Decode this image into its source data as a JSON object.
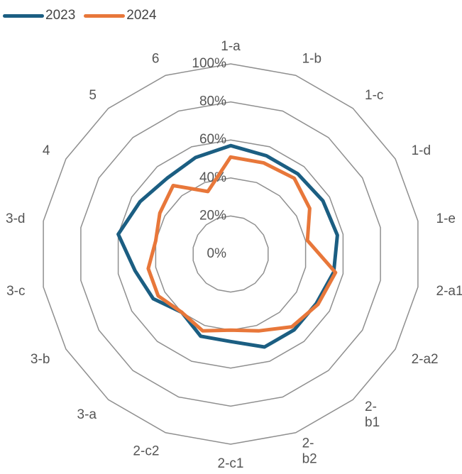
{
  "chart_data": {
    "type": "radar",
    "categories": [
      "1-a",
      "1-b",
      "1-c",
      "1-d",
      "1-e",
      "2-a1",
      "2-a2",
      "2-b1",
      "2-b2",
      "2-c1",
      "2-c2",
      "3-a",
      "3-b",
      "3-c",
      "3-d",
      "4",
      "5",
      "6"
    ],
    "category_display": [
      "1-a",
      "1-b",
      "1-c",
      "1-d",
      "1-e",
      "2-a1",
      "2-a2",
      [
        "2-",
        "b1"
      ],
      [
        "2-",
        "b2"
      ],
      "2-c1",
      "2-c2",
      "3-a",
      "3-b",
      "3-c",
      "3-d",
      "4",
      "5",
      "6"
    ],
    "rlim": [
      0,
      100
    ],
    "rticks": [
      0,
      20,
      40,
      60,
      80,
      100
    ],
    "rtick_labels": [
      "0%",
      "20%",
      "40%",
      "60%",
      "80%",
      "100%"
    ],
    "grid": true,
    "legend_position": "top-left",
    "series": [
      {
        "name": "2023",
        "color": "#1b5e82",
        "values": [
          57,
          55,
          55,
          56,
          57,
          55,
          52,
          52,
          52,
          46,
          46,
          40,
          47,
          51,
          60,
          55,
          52,
          54
        ]
      },
      {
        "name": "2024",
        "color": "#e8773a",
        "values": [
          51,
          51,
          52,
          48,
          41,
          56,
          53,
          50,
          43,
          40,
          43,
          40,
          44,
          44,
          40,
          43,
          47,
          35
        ]
      }
    ]
  }
}
